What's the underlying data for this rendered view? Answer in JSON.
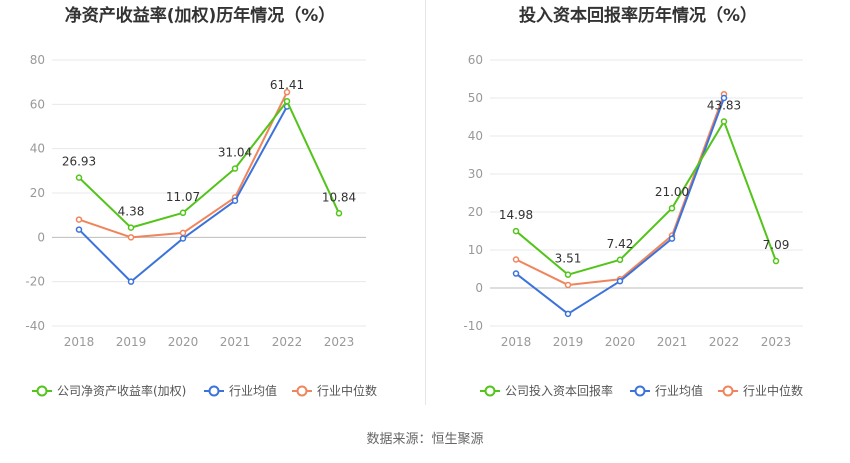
{
  "source_text": "数据来源：恒生聚源",
  "colors": {
    "company": "#52c41a",
    "average": "#3b73db",
    "median": "#f0845c",
    "grid": "#e8e8e8",
    "axis": "#999999"
  },
  "chart_data": [
    {
      "type": "line",
      "title": "净资产收益率(加权)历年情况（%）",
      "categories": [
        "2018",
        "2019",
        "2020",
        "2021",
        "2022",
        "2023"
      ],
      "ylim": [
        -40,
        80
      ],
      "yticks": [
        -40,
        -20,
        0,
        20,
        40,
        60,
        80
      ],
      "grid": true,
      "legend_placement": "bottom",
      "series": [
        {
          "name": "公司净资产收益率(加权)",
          "key": "company",
          "values": [
            26.93,
            4.38,
            11.07,
            31.04,
            61.41,
            10.84
          ],
          "labels": [
            "26.93",
            "4.38",
            "11.07",
            "31.04",
            "61.41",
            "10.84"
          ]
        },
        {
          "name": "行业均值",
          "key": "average",
          "values": [
            3.5,
            -20,
            -0.5,
            16.5,
            59,
            null
          ]
        },
        {
          "name": "行业中位数",
          "key": "median",
          "values": [
            8,
            0,
            2,
            18,
            65.5,
            null
          ]
        }
      ]
    },
    {
      "type": "line",
      "title": "投入资本回报率历年情况（%）",
      "categories": [
        "2018",
        "2019",
        "2020",
        "2021",
        "2022",
        "2023"
      ],
      "ylim": [
        -10,
        60
      ],
      "yticks": [
        -10,
        0,
        10,
        20,
        30,
        40,
        50,
        60
      ],
      "grid": true,
      "legend_placement": "bottom",
      "series": [
        {
          "name": "公司投入资本回报率",
          "key": "company",
          "values": [
            14.98,
            3.51,
            7.42,
            21.0,
            43.83,
            7.09
          ],
          "labels": [
            "14.98",
            "3.51",
            "7.42",
            "21.00",
            "43.83",
            "7.09"
          ]
        },
        {
          "name": "行业均值",
          "key": "average",
          "values": [
            3.8,
            -6.8,
            1.8,
            13,
            50,
            null
          ]
        },
        {
          "name": "行业中位数",
          "key": "median",
          "values": [
            7.5,
            0.8,
            2.3,
            13.8,
            51,
            null
          ]
        }
      ]
    }
  ]
}
